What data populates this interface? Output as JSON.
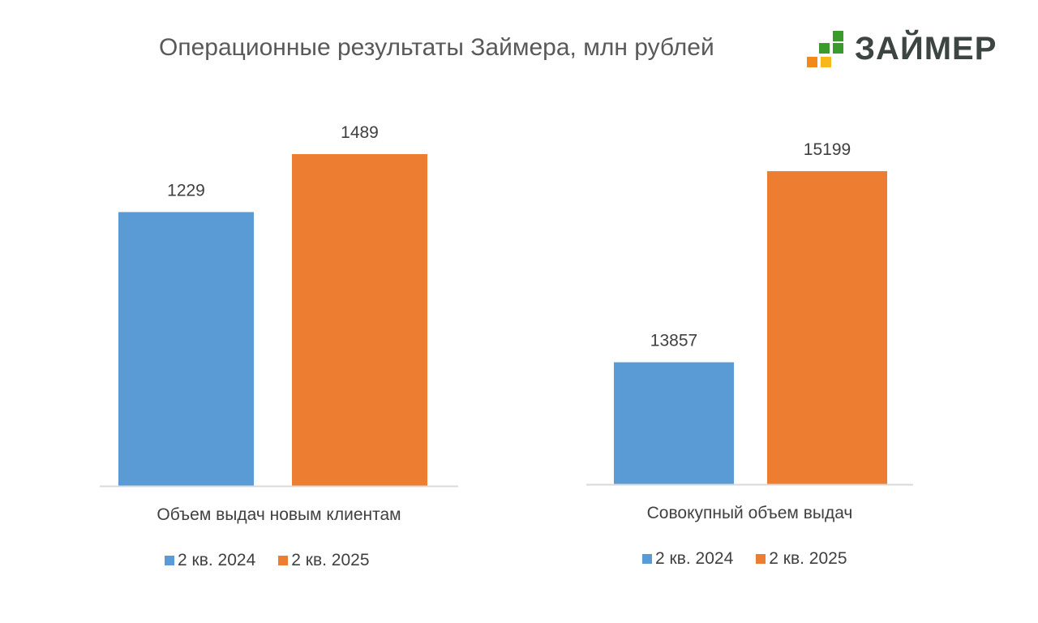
{
  "title": "Операционные результаты Займера, млн рублей",
  "logo": {
    "text": "ЗАЙМЕР",
    "colors": {
      "green": "#3a9a2c",
      "orange": "#f28a1a",
      "yellow": "#f7b81c"
    }
  },
  "colors": {
    "series_2024": "#5b9bd5",
    "series_2025": "#ed7d31",
    "axis": "#d9d9d9"
  },
  "chart_data": [
    {
      "type": "bar",
      "categories": [
        "Объем выдач новым клиентам"
      ],
      "series": [
        {
          "name": "2 кв. 2024",
          "values": [
            1229
          ]
        },
        {
          "name": "2 кв. 2025",
          "values": [
            1489
          ]
        }
      ],
      "ylim": [
        0,
        1489
      ],
      "legend": "bottom",
      "grid": false
    },
    {
      "type": "bar",
      "categories": [
        "Совокупный объем выдач"
      ],
      "series": [
        {
          "name": "2 кв. 2024",
          "values": [
            13857
          ]
        },
        {
          "name": "2 кв. 2025",
          "values": [
            15199
          ]
        }
      ],
      "ylim": [
        13000,
        15199
      ],
      "legend": "bottom",
      "grid": false
    }
  ]
}
